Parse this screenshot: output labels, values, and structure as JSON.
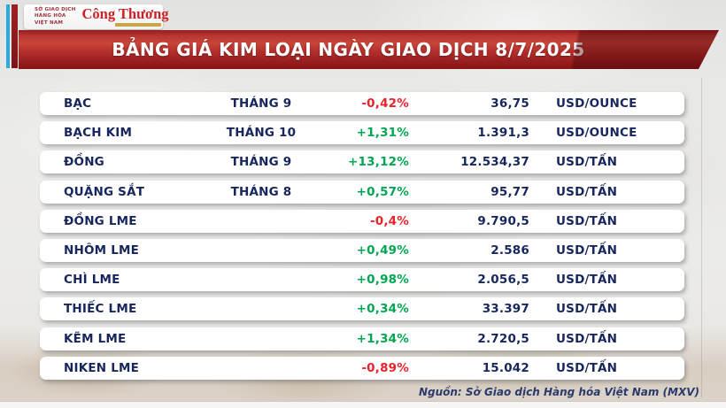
{
  "header": {
    "mxv_logo": {
      "line1": "SỞ GIAO DỊCH",
      "line2": "HÀNG HÓA",
      "line3": "VIỆT NAM"
    },
    "congthuong_logo": "Công Thương",
    "title": "BẢNG GIÁ KIM LOẠI NGÀY GIAO DỊCH 8/7/2025"
  },
  "chart_data": {
    "type": "table",
    "title": "BẢNG GIÁ KIM LOẠI NGÀY GIAO DỊCH 8/7/2025",
    "rows": [
      {
        "name": "BẠC",
        "month": "THÁNG 9",
        "change": "-0,42%",
        "direction": "down",
        "price": "36,75",
        "unit": "USD/OUNCE"
      },
      {
        "name": "BẠCH KIM",
        "month": "THÁNG 10",
        "change": "+1,31%",
        "direction": "up",
        "price": "1.391,3",
        "unit": "USD/OUNCE"
      },
      {
        "name": "ĐỒNG",
        "month": "THÁNG 9",
        "change": "+13,12%",
        "direction": "up",
        "price": "12.534,37",
        "unit": "USD/TẤN"
      },
      {
        "name": "QUẶNG SẮT",
        "month": "THÁNG 8",
        "change": "+0,57%",
        "direction": "up",
        "price": "95,77",
        "unit": "USD/TẤN"
      },
      {
        "name": "ĐỒNG LME",
        "month": "",
        "change": "-0,4%",
        "direction": "down",
        "price": "9.790,5",
        "unit": "USD/TẤN"
      },
      {
        "name": "NHÔM LME",
        "month": "",
        "change": "+0,49%",
        "direction": "up",
        "price": "2.586",
        "unit": "USD/TẤN"
      },
      {
        "name": "CHÌ LME",
        "month": "",
        "change": "+0,98%",
        "direction": "up",
        "price": "2.056,5",
        "unit": "USD/TẤN"
      },
      {
        "name": "THIẾC LME",
        "month": "",
        "change": "+0,34%",
        "direction": "up",
        "price": "33.397",
        "unit": "USD/TẤN"
      },
      {
        "name": "KẼM LME",
        "month": "",
        "change": "+1,34%",
        "direction": "up",
        "price": "2.720,5",
        "unit": "USD/TẤN"
      },
      {
        "name": "NIKEN LME",
        "month": "",
        "change": "-0,89%",
        "direction": "down",
        "price": "15.042",
        "unit": "USD/TẤN"
      }
    ]
  },
  "footer": {
    "source": "Nguồn: Sở Giao dịch Hàng hóa Việt Nam (MXV)"
  },
  "colors": {
    "navy": "#17265d",
    "up": "#00a651",
    "down": "#e8232b",
    "cyan": "#29abe2",
    "logo_red": "#ce2026",
    "banner_red": "#b02a28"
  }
}
